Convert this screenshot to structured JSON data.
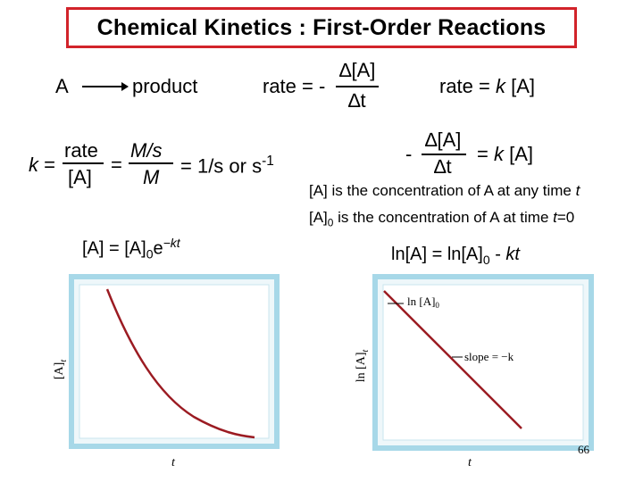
{
  "title": "Chemical Kinetics : First-Order Reactions",
  "reaction": {
    "reactant": "A",
    "product": "product"
  },
  "rate_def": {
    "lhs": "rate = -",
    "num": "∆[A]",
    "den": "∆t"
  },
  "rate_law": {
    "text": "rate = k [A]"
  },
  "k_def": {
    "k": "k =",
    "num1": "rate",
    "den1": "[A]",
    "eq": "=",
    "num2": "M/s",
    "den2": "M",
    "tail": "= 1/s or s",
    "tail_sup": "-1"
  },
  "diff_eq": {
    "minus": "-",
    "num": "∆[A]",
    "den": "∆t",
    "rhs": "= k [A]"
  },
  "notes": {
    "line1_pre": "[A] is the concentration of A at any time ",
    "line1_t": "t",
    "line2_a": "[A]",
    "line2_sub": "0",
    "line2_b": " is the concentration of A at time ",
    "line2_t": "t",
    "line2_c": "=0"
  },
  "integrated_exp": {
    "a": "[A] = [A]",
    "sub": "0",
    "b": "e",
    "sup": "−kt"
  },
  "integrated_log": {
    "a": "ln[A] = ln[A]",
    "sub": "0",
    "b": " - ",
    "c": "kt"
  },
  "graph_left": {
    "ylabel": "[A]",
    "ylabel_sub": "t",
    "xlabel": "t"
  },
  "graph_right": {
    "ylabel": "ln [A]",
    "ylabel_sub": "t",
    "xlabel": "t",
    "intercept_label": "ln [A]",
    "intercept_sub": "0",
    "slope_label": "slope = −k"
  },
  "page_number": "66",
  "colors": {
    "title_border": "#d2232a",
    "curve": "#9b1b22",
    "panel_border": "#a7d8e8",
    "panel_bg": "#eef7fa"
  }
}
